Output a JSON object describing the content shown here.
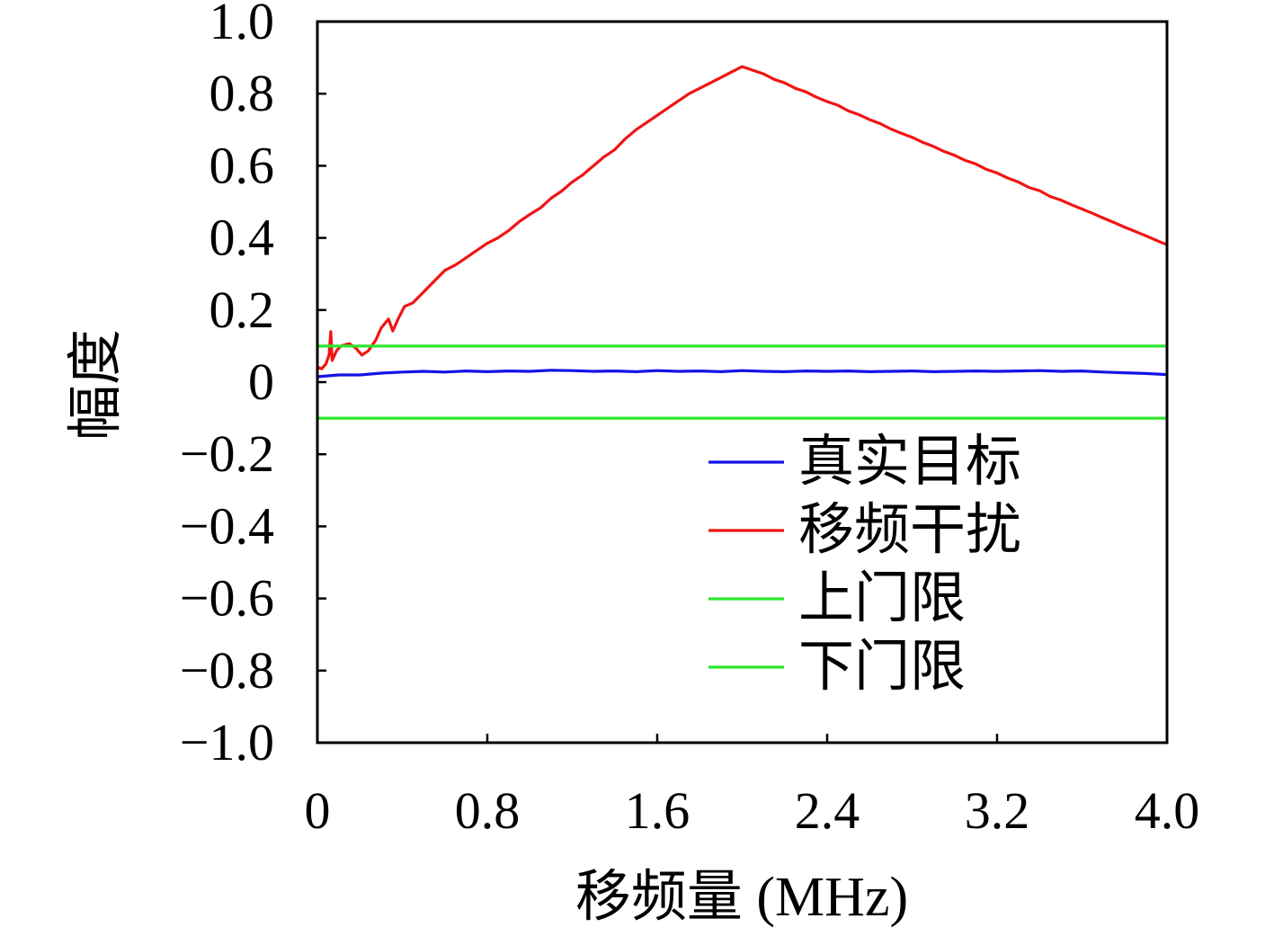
{
  "chart_data": {
    "type": "line",
    "xlabel": "移频量 (MHz)",
    "ylabel": "幅度",
    "xlim": [
      0,
      4.0
    ],
    "ylim": [
      -1.0,
      1.0
    ],
    "xticks": [
      0,
      0.8,
      1.6,
      2.4,
      3.2,
      4.0
    ],
    "xtick_labels": [
      "0",
      "0.8",
      "1.6",
      "2.4",
      "3.2",
      "4.0"
    ],
    "yticks": [
      1.0,
      0.8,
      0.6,
      0.4,
      0.2,
      0,
      -0.2,
      -0.4,
      -0.6,
      -0.8,
      -1.0
    ],
    "ytick_labels": [
      "1.0",
      "0.8",
      "0.6",
      "0.4",
      "0.2",
      "0",
      "−0.2",
      "−0.4",
      "−0.6",
      "−0.8",
      "−1.0"
    ],
    "grid": false,
    "legend": {
      "placement": "lower-right"
    },
    "series": [
      {
        "name": "真实目标",
        "color": "#1414e6",
        "points": [
          [
            0.0,
            0.015
          ],
          [
            0.1,
            0.02
          ],
          [
            0.2,
            0.02
          ],
          [
            0.3,
            0.025
          ],
          [
            0.4,
            0.028
          ],
          [
            0.5,
            0.03
          ],
          [
            0.6,
            0.028
          ],
          [
            0.7,
            0.031
          ],
          [
            0.8,
            0.029
          ],
          [
            0.9,
            0.031
          ],
          [
            1.0,
            0.03
          ],
          [
            1.1,
            0.033
          ],
          [
            1.2,
            0.032
          ],
          [
            1.3,
            0.03
          ],
          [
            1.4,
            0.031
          ],
          [
            1.5,
            0.029
          ],
          [
            1.6,
            0.032
          ],
          [
            1.7,
            0.03
          ],
          [
            1.8,
            0.031
          ],
          [
            1.9,
            0.029
          ],
          [
            2.0,
            0.032
          ],
          [
            2.1,
            0.03
          ],
          [
            2.2,
            0.029
          ],
          [
            2.3,
            0.031
          ],
          [
            2.4,
            0.03
          ],
          [
            2.5,
            0.031
          ],
          [
            2.6,
            0.029
          ],
          [
            2.7,
            0.03
          ],
          [
            2.8,
            0.031
          ],
          [
            2.9,
            0.029
          ],
          [
            3.0,
            0.03
          ],
          [
            3.1,
            0.031
          ],
          [
            3.2,
            0.03
          ],
          [
            3.3,
            0.031
          ],
          [
            3.4,
            0.032
          ],
          [
            3.5,
            0.03
          ],
          [
            3.6,
            0.031
          ],
          [
            3.7,
            0.028
          ],
          [
            3.8,
            0.026
          ],
          [
            3.9,
            0.024
          ],
          [
            4.0,
            0.021
          ]
        ]
      },
      {
        "name": "移频干扰",
        "color": "#f01414",
        "points": [
          [
            0.0,
            0.042
          ],
          [
            0.02,
            0.037
          ],
          [
            0.04,
            0.05
          ],
          [
            0.055,
            0.075
          ],
          [
            0.063,
            0.14
          ],
          [
            0.07,
            0.06
          ],
          [
            0.09,
            0.087
          ],
          [
            0.11,
            0.1
          ],
          [
            0.15,
            0.107
          ],
          [
            0.18,
            0.095
          ],
          [
            0.21,
            0.075
          ],
          [
            0.24,
            0.087
          ],
          [
            0.275,
            0.117
          ],
          [
            0.3,
            0.15
          ],
          [
            0.335,
            0.175
          ],
          [
            0.355,
            0.142
          ],
          [
            0.38,
            0.175
          ],
          [
            0.41,
            0.21
          ],
          [
            0.45,
            0.22
          ],
          [
            0.5,
            0.25
          ],
          [
            0.55,
            0.28
          ],
          [
            0.6,
            0.31
          ],
          [
            0.65,
            0.325
          ],
          [
            0.7,
            0.345
          ],
          [
            0.75,
            0.365
          ],
          [
            0.8,
            0.385
          ],
          [
            0.85,
            0.4
          ],
          [
            0.9,
            0.42
          ],
          [
            0.95,
            0.445
          ],
          [
            1.0,
            0.465
          ],
          [
            1.05,
            0.483
          ],
          [
            1.1,
            0.51
          ],
          [
            1.15,
            0.53
          ],
          [
            1.2,
            0.555
          ],
          [
            1.25,
            0.575
          ],
          [
            1.3,
            0.6
          ],
          [
            1.35,
            0.625
          ],
          [
            1.4,
            0.645
          ],
          [
            1.45,
            0.675
          ],
          [
            1.5,
            0.7
          ],
          [
            1.55,
            0.72
          ],
          [
            1.6,
            0.74
          ],
          [
            1.65,
            0.76
          ],
          [
            1.7,
            0.78
          ],
          [
            1.75,
            0.8
          ],
          [
            1.8,
            0.815
          ],
          [
            1.85,
            0.83
          ],
          [
            1.9,
            0.845
          ],
          [
            1.95,
            0.86
          ],
          [
            2.0,
            0.875
          ],
          [
            2.05,
            0.865
          ],
          [
            2.1,
            0.855
          ],
          [
            2.15,
            0.84
          ],
          [
            2.2,
            0.83
          ],
          [
            2.25,
            0.815
          ],
          [
            2.3,
            0.805
          ],
          [
            2.35,
            0.79
          ],
          [
            2.4,
            0.778
          ],
          [
            2.45,
            0.768
          ],
          [
            2.5,
            0.752
          ],
          [
            2.55,
            0.742
          ],
          [
            2.6,
            0.728
          ],
          [
            2.65,
            0.717
          ],
          [
            2.7,
            0.702
          ],
          [
            2.75,
            0.69
          ],
          [
            2.8,
            0.679
          ],
          [
            2.85,
            0.665
          ],
          [
            2.9,
            0.654
          ],
          [
            2.95,
            0.64
          ],
          [
            3.0,
            0.629
          ],
          [
            3.05,
            0.615
          ],
          [
            3.1,
            0.605
          ],
          [
            3.15,
            0.59
          ],
          [
            3.2,
            0.58
          ],
          [
            3.25,
            0.566
          ],
          [
            3.3,
            0.555
          ],
          [
            3.35,
            0.54
          ],
          [
            3.4,
            0.531
          ],
          [
            3.45,
            0.515
          ],
          [
            3.5,
            0.505
          ],
          [
            3.55,
            0.492
          ],
          [
            3.6,
            0.48
          ],
          [
            3.65,
            0.468
          ],
          [
            3.7,
            0.455
          ],
          [
            3.75,
            0.443
          ],
          [
            3.8,
            0.43
          ],
          [
            3.85,
            0.418
          ],
          [
            3.9,
            0.406
          ],
          [
            3.95,
            0.393
          ],
          [
            4.0,
            0.381
          ]
        ]
      },
      {
        "name": "上门限",
        "color": "#2ee62e",
        "points": [
          [
            0.0,
            0.1
          ],
          [
            4.0,
            0.1
          ]
        ]
      },
      {
        "name": "下门限",
        "color": "#2ee62e",
        "points": [
          [
            0.0,
            -0.1
          ],
          [
            4.0,
            -0.1
          ]
        ]
      }
    ]
  }
}
